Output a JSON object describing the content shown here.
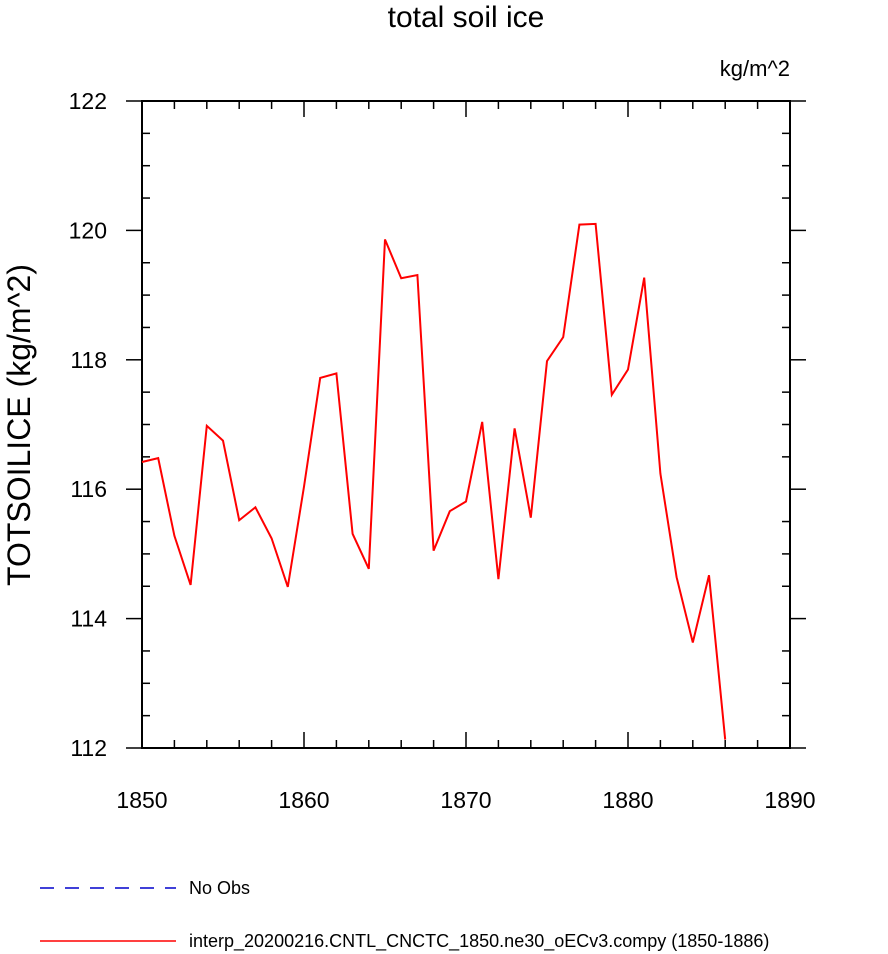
{
  "chart_data": {
    "type": "line",
    "title": "total soil ice",
    "units": "kg/m^2",
    "ylabel": "TOTSOILICE  (kg/m^2)",
    "xlabel": "",
    "xlim": [
      1850,
      1890
    ],
    "ylim": [
      112,
      122
    ],
    "xticks": [
      1850,
      1860,
      1870,
      1880,
      1890
    ],
    "yticks": [
      112,
      114,
      116,
      118,
      120,
      122
    ],
    "grid": false,
    "legend_position": "bottom",
    "series": [
      {
        "name": "interp_20200216.CNTL_CNCTC_1850.ne30_oECv3.compy (1850-1886)",
        "color": "#ff0000",
        "dash": "solid",
        "x": [
          1850,
          1851,
          1852,
          1853,
          1854,
          1855,
          1856,
          1857,
          1858,
          1859,
          1860,
          1861,
          1862,
          1863,
          1864,
          1865,
          1866,
          1867,
          1868,
          1869,
          1870,
          1871,
          1872,
          1873,
          1874,
          1875,
          1876,
          1877,
          1878,
          1879,
          1880,
          1881,
          1882,
          1883,
          1884,
          1885,
          1886
        ],
        "y": [
          116.42,
          116.48,
          115.28,
          114.52,
          116.98,
          116.75,
          115.52,
          115.72,
          115.24,
          114.49,
          116.04,
          117.72,
          117.79,
          115.31,
          114.77,
          119.86,
          119.26,
          119.31,
          115.05,
          115.66,
          115.81,
          117.04,
          114.61,
          116.94,
          115.56,
          117.98,
          118.35,
          120.09,
          120.1,
          117.46,
          117.85,
          119.27,
          116.24,
          114.64,
          113.63,
          114.67,
          112.13
        ]
      }
    ],
    "legend": [
      {
        "label": "No Obs",
        "color": "#0000cc",
        "dash": "dashed"
      },
      {
        "label": "interp_20200216.CNTL_CNCTC_1850.ne30_oECv3.compy (1850-1886)",
        "color": "#ff0000",
        "dash": "solid"
      }
    ]
  }
}
